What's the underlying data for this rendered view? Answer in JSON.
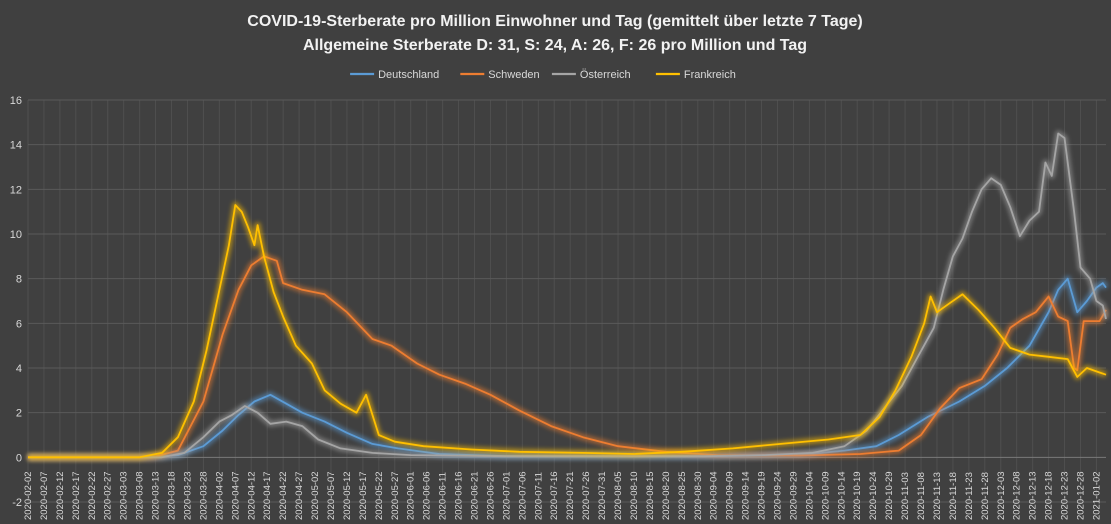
{
  "chart_data": {
    "type": "line",
    "title": "COVID-19-Sterberate pro Million Einwohner und Tag (gemittelt über letzte 7 Tage)",
    "subtitle": "Allgemeine Sterberate D: 31, S: 24, A: 26, F: 26 pro Million und Tag",
    "ylim": [
      -2,
      16
    ],
    "yticks": [
      -2,
      0,
      2,
      4,
      6,
      8,
      10,
      12,
      14,
      16
    ],
    "x_start": "2020-02-02",
    "x_end": "2021-01-05",
    "x_tick_interval_days": 5,
    "legend_position": "top-center",
    "series": [
      {
        "name": "Deutschland",
        "color": "#5b9bd5",
        "points": [
          [
            "2020-02-02",
            0
          ],
          [
            "2020-03-10",
            0
          ],
          [
            "2020-03-20",
            0.1
          ],
          [
            "2020-03-28",
            0.5
          ],
          [
            "2020-04-03",
            1.2
          ],
          [
            "2020-04-08",
            1.9
          ],
          [
            "2020-04-13",
            2.5
          ],
          [
            "2020-04-18",
            2.8
          ],
          [
            "2020-04-23",
            2.4
          ],
          [
            "2020-04-28",
            2.0
          ],
          [
            "2020-05-05",
            1.6
          ],
          [
            "2020-05-12",
            1.1
          ],
          [
            "2020-05-20",
            0.6
          ],
          [
            "2020-05-28",
            0.4
          ],
          [
            "2020-06-10",
            0.15
          ],
          [
            "2020-07-01",
            0.05
          ],
          [
            "2020-08-01",
            0.05
          ],
          [
            "2020-09-01",
            0.05
          ],
          [
            "2020-10-01",
            0.1
          ],
          [
            "2020-10-15",
            0.3
          ],
          [
            "2020-10-25",
            0.5
          ],
          [
            "2020-11-01",
            1.0
          ],
          [
            "2020-11-10",
            1.8
          ],
          [
            "2020-11-20",
            2.5
          ],
          [
            "2020-11-28",
            3.2
          ],
          [
            "2020-12-05",
            4.0
          ],
          [
            "2020-12-12",
            5.0
          ],
          [
            "2020-12-18",
            6.5
          ],
          [
            "2020-12-21",
            7.5
          ],
          [
            "2020-12-24",
            8.0
          ],
          [
            "2020-12-27",
            6.5
          ],
          [
            "2020-12-30",
            7.0
          ],
          [
            "2021-01-02",
            7.6
          ],
          [
            "2021-01-04",
            7.8
          ],
          [
            "2021-01-05",
            7.6
          ]
        ]
      },
      {
        "name": "Schweden",
        "color": "#ed7d31",
        "points": [
          [
            "2020-02-02",
            0
          ],
          [
            "2020-03-12",
            0
          ],
          [
            "2020-03-20",
            0.3
          ],
          [
            "2020-03-28",
            2.5
          ],
          [
            "2020-04-03",
            5.5
          ],
          [
            "2020-04-08",
            7.5
          ],
          [
            "2020-04-12",
            8.6
          ],
          [
            "2020-04-16",
            9.0
          ],
          [
            "2020-04-20",
            8.8
          ],
          [
            "2020-04-22",
            7.8
          ],
          [
            "2020-04-28",
            7.5
          ],
          [
            "2020-05-05",
            7.3
          ],
          [
            "2020-05-12",
            6.5
          ],
          [
            "2020-05-20",
            5.3
          ],
          [
            "2020-05-26",
            5.0
          ],
          [
            "2020-06-03",
            4.2
          ],
          [
            "2020-06-10",
            3.7
          ],
          [
            "2020-06-18",
            3.3
          ],
          [
            "2020-06-26",
            2.8
          ],
          [
            "2020-07-05",
            2.1
          ],
          [
            "2020-07-15",
            1.4
          ],
          [
            "2020-07-25",
            0.9
          ],
          [
            "2020-08-05",
            0.5
          ],
          [
            "2020-08-20",
            0.25
          ],
          [
            "2020-09-05",
            0.1
          ],
          [
            "2020-10-01",
            0.08
          ],
          [
            "2020-10-20",
            0.15
          ],
          [
            "2020-11-01",
            0.3
          ],
          [
            "2020-11-08",
            1.0
          ],
          [
            "2020-11-14",
            2.2
          ],
          [
            "2020-11-20",
            3.1
          ],
          [
            "2020-11-27",
            3.5
          ],
          [
            "2020-12-02",
            4.6
          ],
          [
            "2020-12-06",
            5.8
          ],
          [
            "2020-12-10",
            6.2
          ],
          [
            "2020-12-14",
            6.5
          ],
          [
            "2020-12-18",
            7.2
          ],
          [
            "2020-12-21",
            6.3
          ],
          [
            "2020-12-24",
            6.1
          ],
          [
            "2020-12-26",
            4.0
          ],
          [
            "2020-12-27",
            3.9
          ],
          [
            "2020-12-29",
            6.1
          ],
          [
            "2021-01-03",
            6.1
          ],
          [
            "2021-01-05",
            6.6
          ]
        ]
      },
      {
        "name": "Österreich",
        "color": "#a5a5a5",
        "points": [
          [
            "2020-02-02",
            0
          ],
          [
            "2020-03-15",
            0
          ],
          [
            "2020-03-22",
            0.2
          ],
          [
            "2020-03-28",
            0.9
          ],
          [
            "2020-04-02",
            1.6
          ],
          [
            "2020-04-06",
            1.9
          ],
          [
            "2020-04-10",
            2.3
          ],
          [
            "2020-04-14",
            2.0
          ],
          [
            "2020-04-18",
            1.5
          ],
          [
            "2020-04-23",
            1.6
          ],
          [
            "2020-04-28",
            1.4
          ],
          [
            "2020-05-03",
            0.8
          ],
          [
            "2020-05-10",
            0.4
          ],
          [
            "2020-05-20",
            0.2
          ],
          [
            "2020-06-01",
            0.1
          ],
          [
            "2020-07-01",
            0.05
          ],
          [
            "2020-08-01",
            0.05
          ],
          [
            "2020-09-01",
            0.05
          ],
          [
            "2020-09-20",
            0.1
          ],
          [
            "2020-10-05",
            0.2
          ],
          [
            "2020-10-15",
            0.5
          ],
          [
            "2020-10-22",
            1.2
          ],
          [
            "2020-10-28",
            2.3
          ],
          [
            "2020-11-02",
            3.2
          ],
          [
            "2020-11-07",
            4.5
          ],
          [
            "2020-11-12",
            5.8
          ],
          [
            "2020-11-15",
            7.5
          ],
          [
            "2020-11-18",
            9.0
          ],
          [
            "2020-11-21",
            9.8
          ],
          [
            "2020-11-24",
            11.0
          ],
          [
            "2020-11-27",
            12.0
          ],
          [
            "2020-11-30",
            12.5
          ],
          [
            "2020-12-03",
            12.2
          ],
          [
            "2020-12-06",
            11.2
          ],
          [
            "2020-12-09",
            9.9
          ],
          [
            "2020-12-12",
            10.6
          ],
          [
            "2020-12-15",
            11.0
          ],
          [
            "2020-12-17",
            13.2
          ],
          [
            "2020-12-19",
            12.6
          ],
          [
            "2020-12-21",
            14.5
          ],
          [
            "2020-12-23",
            14.3
          ],
          [
            "2020-12-26",
            11.0
          ],
          [
            "2020-12-28",
            8.5
          ],
          [
            "2020-12-31",
            8.0
          ],
          [
            "2021-01-02",
            7.0
          ],
          [
            "2021-01-04",
            6.8
          ],
          [
            "2021-01-05",
            6.2
          ]
        ]
      },
      {
        "name": "Frankreich",
        "color": "#ffc000",
        "points": [
          [
            "2020-02-02",
            0
          ],
          [
            "2020-03-08",
            0
          ],
          [
            "2020-03-15",
            0.2
          ],
          [
            "2020-03-20",
            0.9
          ],
          [
            "2020-03-25",
            2.5
          ],
          [
            "2020-03-29",
            4.8
          ],
          [
            "2020-04-02",
            7.5
          ],
          [
            "2020-04-05",
            9.5
          ],
          [
            "2020-04-07",
            11.3
          ],
          [
            "2020-04-09",
            11.0
          ],
          [
            "2020-04-11",
            10.3
          ],
          [
            "2020-04-13",
            9.5
          ],
          [
            "2020-04-14",
            10.4
          ],
          [
            "2020-04-16",
            9.0
          ],
          [
            "2020-04-19",
            7.4
          ],
          [
            "2020-04-22",
            6.3
          ],
          [
            "2020-04-26",
            5.0
          ],
          [
            "2020-05-01",
            4.2
          ],
          [
            "2020-05-05",
            3.0
          ],
          [
            "2020-05-10",
            2.4
          ],
          [
            "2020-05-15",
            2.0
          ],
          [
            "2020-05-18",
            2.8
          ],
          [
            "2020-05-22",
            1.0
          ],
          [
            "2020-05-27",
            0.7
          ],
          [
            "2020-06-05",
            0.5
          ],
          [
            "2020-06-20",
            0.35
          ],
          [
            "2020-07-05",
            0.25
          ],
          [
            "2020-07-25",
            0.2
          ],
          [
            "2020-08-10",
            0.15
          ],
          [
            "2020-08-25",
            0.25
          ],
          [
            "2020-09-10",
            0.4
          ],
          [
            "2020-09-25",
            0.6
          ],
          [
            "2020-10-10",
            0.8
          ],
          [
            "2020-10-20",
            1.0
          ],
          [
            "2020-10-26",
            1.8
          ],
          [
            "2020-10-31",
            3.0
          ],
          [
            "2020-11-05",
            4.5
          ],
          [
            "2020-11-09",
            6.0
          ],
          [
            "2020-11-11",
            7.2
          ],
          [
            "2020-11-13",
            6.5
          ],
          [
            "2020-11-17",
            6.9
          ],
          [
            "2020-11-21",
            7.3
          ],
          [
            "2020-11-26",
            6.6
          ],
          [
            "2020-12-01",
            5.8
          ],
          [
            "2020-12-06",
            4.9
          ],
          [
            "2020-12-12",
            4.6
          ],
          [
            "2020-12-18",
            4.5
          ],
          [
            "2020-12-24",
            4.4
          ],
          [
            "2020-12-27",
            3.6
          ],
          [
            "2020-12-30",
            4.0
          ],
          [
            "2021-01-03",
            3.8
          ],
          [
            "2021-01-05",
            3.7
          ]
        ]
      }
    ]
  }
}
